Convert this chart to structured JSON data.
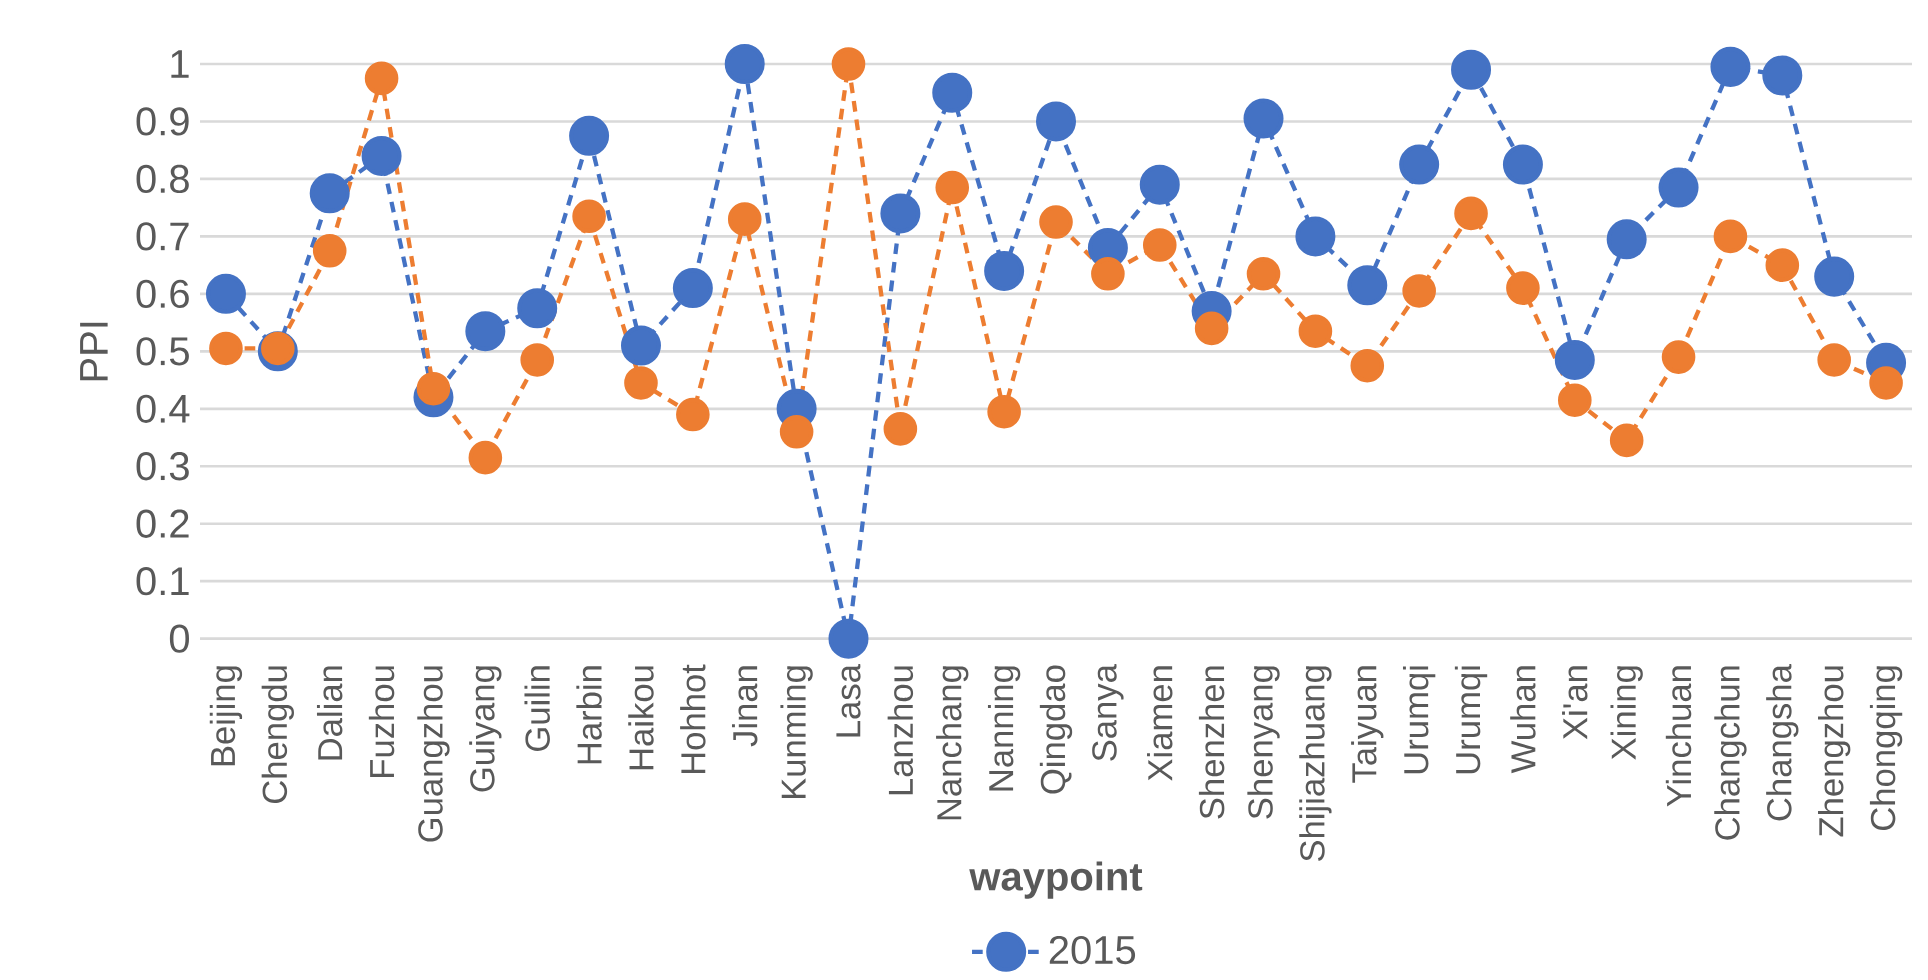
{
  "chart_data": {
    "type": "line",
    "xlabel": "waypoint",
    "ylabel": "PPI",
    "categories": [
      "Beijing",
      "Chengdu",
      "Dalian",
      "Fuzhou",
      "Guangzhou",
      "Guiyang",
      "Guilin",
      "Harbin",
      "Haikou",
      "Hohhot",
      "Jinan",
      "Kunming",
      "Lasa",
      "Lanzhou",
      "Nanchang",
      "Nanning",
      "Qingdao",
      "Sanya",
      "Xiamen",
      "Shenzhen",
      "Shenyang",
      "Shijiazhuang",
      "Taiyuan",
      "Urumqi",
      "Urumqi",
      "Wuhan",
      "Xi'an",
      "Xining",
      "Yinchuan",
      "Changchun",
      "Changsha",
      "Zhengzhou",
      "Chongqing"
    ],
    "series": [
      {
        "name": "2015",
        "color": "#4472c4",
        "values": [
          0.6,
          0.5,
          0.775,
          0.84,
          0.42,
          0.535,
          0.575,
          0.875,
          0.51,
          0.61,
          1.0,
          0.4,
          0.0,
          0.74,
          0.95,
          0.64,
          0.9,
          0.68,
          0.79,
          0.57,
          0.905,
          0.7,
          0.615,
          0.825,
          0.99,
          0.825,
          0.485,
          0.695,
          0.785,
          0.995,
          0.98,
          0.63,
          0.48
        ]
      },
      {
        "color": "#ed7d31",
        "values": [
          0.505,
          0.505,
          0.675,
          0.975,
          0.435,
          0.315,
          0.485,
          0.735,
          0.445,
          0.39,
          0.73,
          0.36,
          1.0,
          0.365,
          0.785,
          0.395,
          0.725,
          0.635,
          0.685,
          0.54,
          0.635,
          0.535,
          0.475,
          0.605,
          0.74,
          0.61,
          0.415,
          0.345,
          0.49,
          0.7,
          0.65,
          0.485,
          0.445
        ]
      }
    ],
    "ylim": [
      0,
      1
    ],
    "yticks": [
      0,
      0.1,
      0.2,
      0.3,
      0.4,
      0.5,
      0.6,
      0.7,
      0.8,
      0.9,
      1
    ],
    "grid": "y",
    "legend": "bottom",
    "marker": "circle",
    "line_style": "dashed"
  }
}
